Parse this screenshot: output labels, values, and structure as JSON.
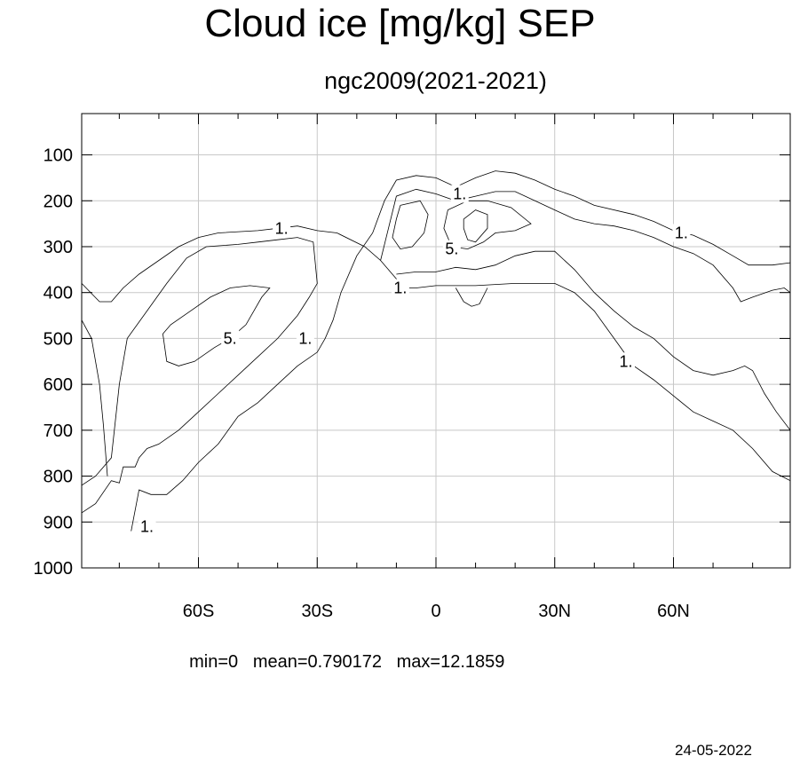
{
  "chart_data": {
    "type": "contour",
    "title": "Cloud ice [mg/kg] SEP",
    "subtitle": "ngc2009(2021-2021)",
    "x_ticks": [
      {
        "value": -60,
        "label": "60S"
      },
      {
        "value": -30,
        "label": "30S"
      },
      {
        "value": 0,
        "label": "0"
      },
      {
        "value": 30,
        "label": "30N"
      },
      {
        "value": 60,
        "label": "60N"
      }
    ],
    "xlim": [
      -89.5,
      89.5
    ],
    "y_ticks": [
      100,
      200,
      300,
      400,
      500,
      600,
      700,
      800,
      900,
      1000
    ],
    "ylim": [
      1000,
      10
    ],
    "grid": true,
    "contour_levels": [
      1,
      5
    ],
    "contour_labels": [
      {
        "text": "1.",
        "x": -39,
        "y": 260
      },
      {
        "text": "5.",
        "x": -52,
        "y": 500
      },
      {
        "text": "1.",
        "x": -33,
        "y": 500
      },
      {
        "text": "1.",
        "x": -73,
        "y": 910
      },
      {
        "text": "1.",
        "x": 6,
        "y": 185
      },
      {
        "text": "5.",
        "x": 4,
        "y": 305
      },
      {
        "text": "1.",
        "x": -9,
        "y": 390
      },
      {
        "text": "1.",
        "x": 62,
        "y": 270
      },
      {
        "text": "1.",
        "x": 48,
        "y": 550
      }
    ],
    "contours": [
      {
        "level": 1,
        "points": [
          [
            -89.5,
            380
          ],
          [
            -85,
            420
          ],
          [
            -82,
            420
          ],
          [
            -79,
            390
          ],
          [
            -75,
            360
          ],
          [
            -70,
            330
          ],
          [
            -65,
            300
          ],
          [
            -60,
            280
          ],
          [
            -55,
            270
          ],
          [
            -45,
            265
          ],
          [
            -40,
            260
          ],
          [
            -35,
            255
          ],
          [
            -30,
            265
          ],
          [
            -25,
            270
          ],
          [
            -18,
            300
          ],
          [
            -14,
            330
          ],
          [
            -10,
            370
          ],
          [
            -8,
            390
          ],
          [
            -5,
            390
          ],
          [
            0,
            385
          ],
          [
            10,
            385
          ],
          [
            20,
            380
          ],
          [
            30,
            380
          ],
          [
            35,
            400
          ],
          [
            40,
            440
          ],
          [
            45,
            500
          ],
          [
            50,
            560
          ],
          [
            55,
            590
          ],
          [
            60,
            625
          ],
          [
            65,
            660
          ],
          [
            70,
            680
          ],
          [
            75,
            700
          ],
          [
            80,
            740
          ],
          [
            85,
            790
          ],
          [
            89.5,
            810
          ]
        ]
      },
      {
        "level": 1,
        "points": [
          [
            -83,
            800
          ],
          [
            -84,
            690
          ],
          [
            -85,
            600
          ],
          [
            -87,
            500
          ],
          [
            -89.5,
            460
          ]
        ]
      },
      {
        "level": 1,
        "points": [
          [
            -89.5,
            820
          ],
          [
            -86,
            800
          ],
          [
            -82,
            760
          ],
          [
            -80,
            600
          ],
          [
            -78,
            500
          ],
          [
            -73,
            440
          ],
          [
            -68,
            380
          ],
          [
            -63,
            325
          ],
          [
            -58,
            300
          ],
          [
            -50,
            295
          ],
          [
            -45,
            290
          ],
          [
            -40,
            285
          ],
          [
            -35,
            280
          ],
          [
            -31,
            290
          ],
          [
            -30,
            380
          ],
          [
            -32,
            410
          ],
          [
            -35,
            450
          ],
          [
            -40,
            500
          ],
          [
            -45,
            540
          ],
          [
            -50,
            580
          ],
          [
            -55,
            620
          ],
          [
            -60,
            660
          ],
          [
            -65,
            700
          ],
          [
            -70,
            730
          ],
          [
            -73,
            740
          ],
          [
            -75,
            760
          ],
          [
            -76,
            780
          ],
          [
            -79,
            780
          ],
          [
            -80,
            815
          ],
          [
            -82,
            810
          ],
          [
            -86,
            860
          ],
          [
            -89.5,
            880
          ]
        ]
      },
      {
        "level": 1,
        "points": [
          [
            -77,
            920
          ],
          [
            -75,
            830
          ],
          [
            -72,
            840
          ],
          [
            -68,
            840
          ],
          [
            -64,
            810
          ],
          [
            -60,
            770
          ],
          [
            -55,
            730
          ],
          [
            -50,
            670
          ],
          [
            -45,
            640
          ],
          [
            -40,
            600
          ],
          [
            -35,
            560
          ],
          [
            -30,
            530
          ],
          [
            -28,
            500
          ],
          [
            -26,
            460
          ],
          [
            -24,
            400
          ],
          [
            -20,
            320
          ],
          [
            -16,
            270
          ],
          [
            -13,
            200
          ],
          [
            -10,
            155
          ],
          [
            -5,
            145
          ],
          [
            0,
            150
          ],
          [
            5,
            170
          ],
          [
            10,
            150
          ],
          [
            15,
            135
          ],
          [
            20,
            140
          ],
          [
            25,
            155
          ],
          [
            30,
            175
          ],
          [
            35,
            190
          ],
          [
            40,
            210
          ],
          [
            50,
            230
          ],
          [
            55,
            245
          ],
          [
            60,
            265
          ],
          [
            65,
            275
          ],
          [
            70,
            295
          ],
          [
            75,
            320
          ],
          [
            79,
            340
          ],
          [
            85,
            340
          ],
          [
            89.5,
            335
          ]
        ]
      },
      {
        "level": 1,
        "points": [
          [
            -14,
            330
          ],
          [
            -12,
            260
          ],
          [
            -10,
            190
          ],
          [
            -5,
            175
          ],
          [
            0,
            185
          ],
          [
            5,
            200
          ],
          [
            10,
            190
          ],
          [
            15,
            180
          ],
          [
            20,
            180
          ],
          [
            25,
            200
          ],
          [
            30,
            220
          ],
          [
            35,
            240
          ],
          [
            40,
            250
          ],
          [
            45,
            255
          ],
          [
            50,
            265
          ],
          [
            55,
            280
          ],
          [
            60,
            300
          ],
          [
            65,
            315
          ],
          [
            70,
            340
          ],
          [
            75,
            390
          ],
          [
            77,
            420
          ],
          [
            80,
            410
          ],
          [
            85,
            395
          ],
          [
            88,
            390
          ],
          [
            89.5,
            400
          ]
        ]
      },
      {
        "level": 1,
        "points": [
          [
            -10,
            360
          ],
          [
            -5,
            355
          ],
          [
            0,
            355
          ],
          [
            5,
            345
          ],
          [
            10,
            350
          ],
          [
            15,
            340
          ],
          [
            20,
            320
          ],
          [
            25,
            310
          ],
          [
            30,
            310
          ],
          [
            35,
            350
          ],
          [
            40,
            400
          ],
          [
            45,
            440
          ],
          [
            50,
            475
          ],
          [
            55,
            500
          ],
          [
            60,
            540
          ],
          [
            65,
            570
          ],
          [
            70,
            580
          ],
          [
            75,
            570
          ],
          [
            78,
            560
          ],
          [
            80,
            570
          ],
          [
            83,
            620
          ],
          [
            86,
            660
          ],
          [
            89.5,
            700
          ]
        ]
      },
      {
        "level": 1,
        "points": [
          [
            5,
            390
          ],
          [
            7,
            420
          ],
          [
            9,
            430
          ],
          [
            11,
            425
          ],
          [
            13,
            390
          ]
        ]
      },
      {
        "level": 5,
        "points": [
          [
            -69,
            490
          ],
          [
            -67,
            470
          ],
          [
            -62,
            440
          ],
          [
            -57,
            410
          ],
          [
            -52,
            390
          ],
          [
            -47,
            385
          ],
          [
            -42,
            390
          ],
          [
            -44,
            410
          ],
          [
            -46,
            440
          ],
          [
            -48,
            470
          ],
          [
            -52,
            500
          ],
          [
            -56,
            520
          ],
          [
            -61,
            550
          ],
          [
            -65,
            560
          ],
          [
            -68,
            550
          ],
          [
            -69,
            490
          ]
        ]
      },
      {
        "level": 5,
        "points": [
          [
            -9,
            210
          ],
          [
            -4,
            200
          ],
          [
            -2,
            230
          ],
          [
            -3,
            270
          ],
          [
            -6,
            300
          ],
          [
            -9,
            305
          ],
          [
            -11,
            280
          ],
          [
            -10,
            240
          ],
          [
            -9,
            210
          ]
        ]
      },
      {
        "level": 5,
        "points": [
          [
            3,
            220
          ],
          [
            8,
            200
          ],
          [
            13,
            200
          ],
          [
            19,
            215
          ],
          [
            24,
            250
          ],
          [
            20,
            265
          ],
          [
            15,
            270
          ],
          [
            12,
            290
          ],
          [
            8,
            305
          ],
          [
            4,
            300
          ],
          [
            2,
            260
          ],
          [
            3,
            220
          ]
        ]
      },
      {
        "level": 5,
        "points": [
          [
            7,
            240
          ],
          [
            10,
            220
          ],
          [
            13,
            230
          ],
          [
            13,
            260
          ],
          [
            10,
            290
          ],
          [
            8,
            285
          ],
          [
            7,
            260
          ],
          [
            7,
            240
          ]
        ]
      }
    ],
    "stats": {
      "min": "0",
      "mean": "0.790172",
      "max": "12.1859"
    },
    "date": "24-05-2022"
  }
}
